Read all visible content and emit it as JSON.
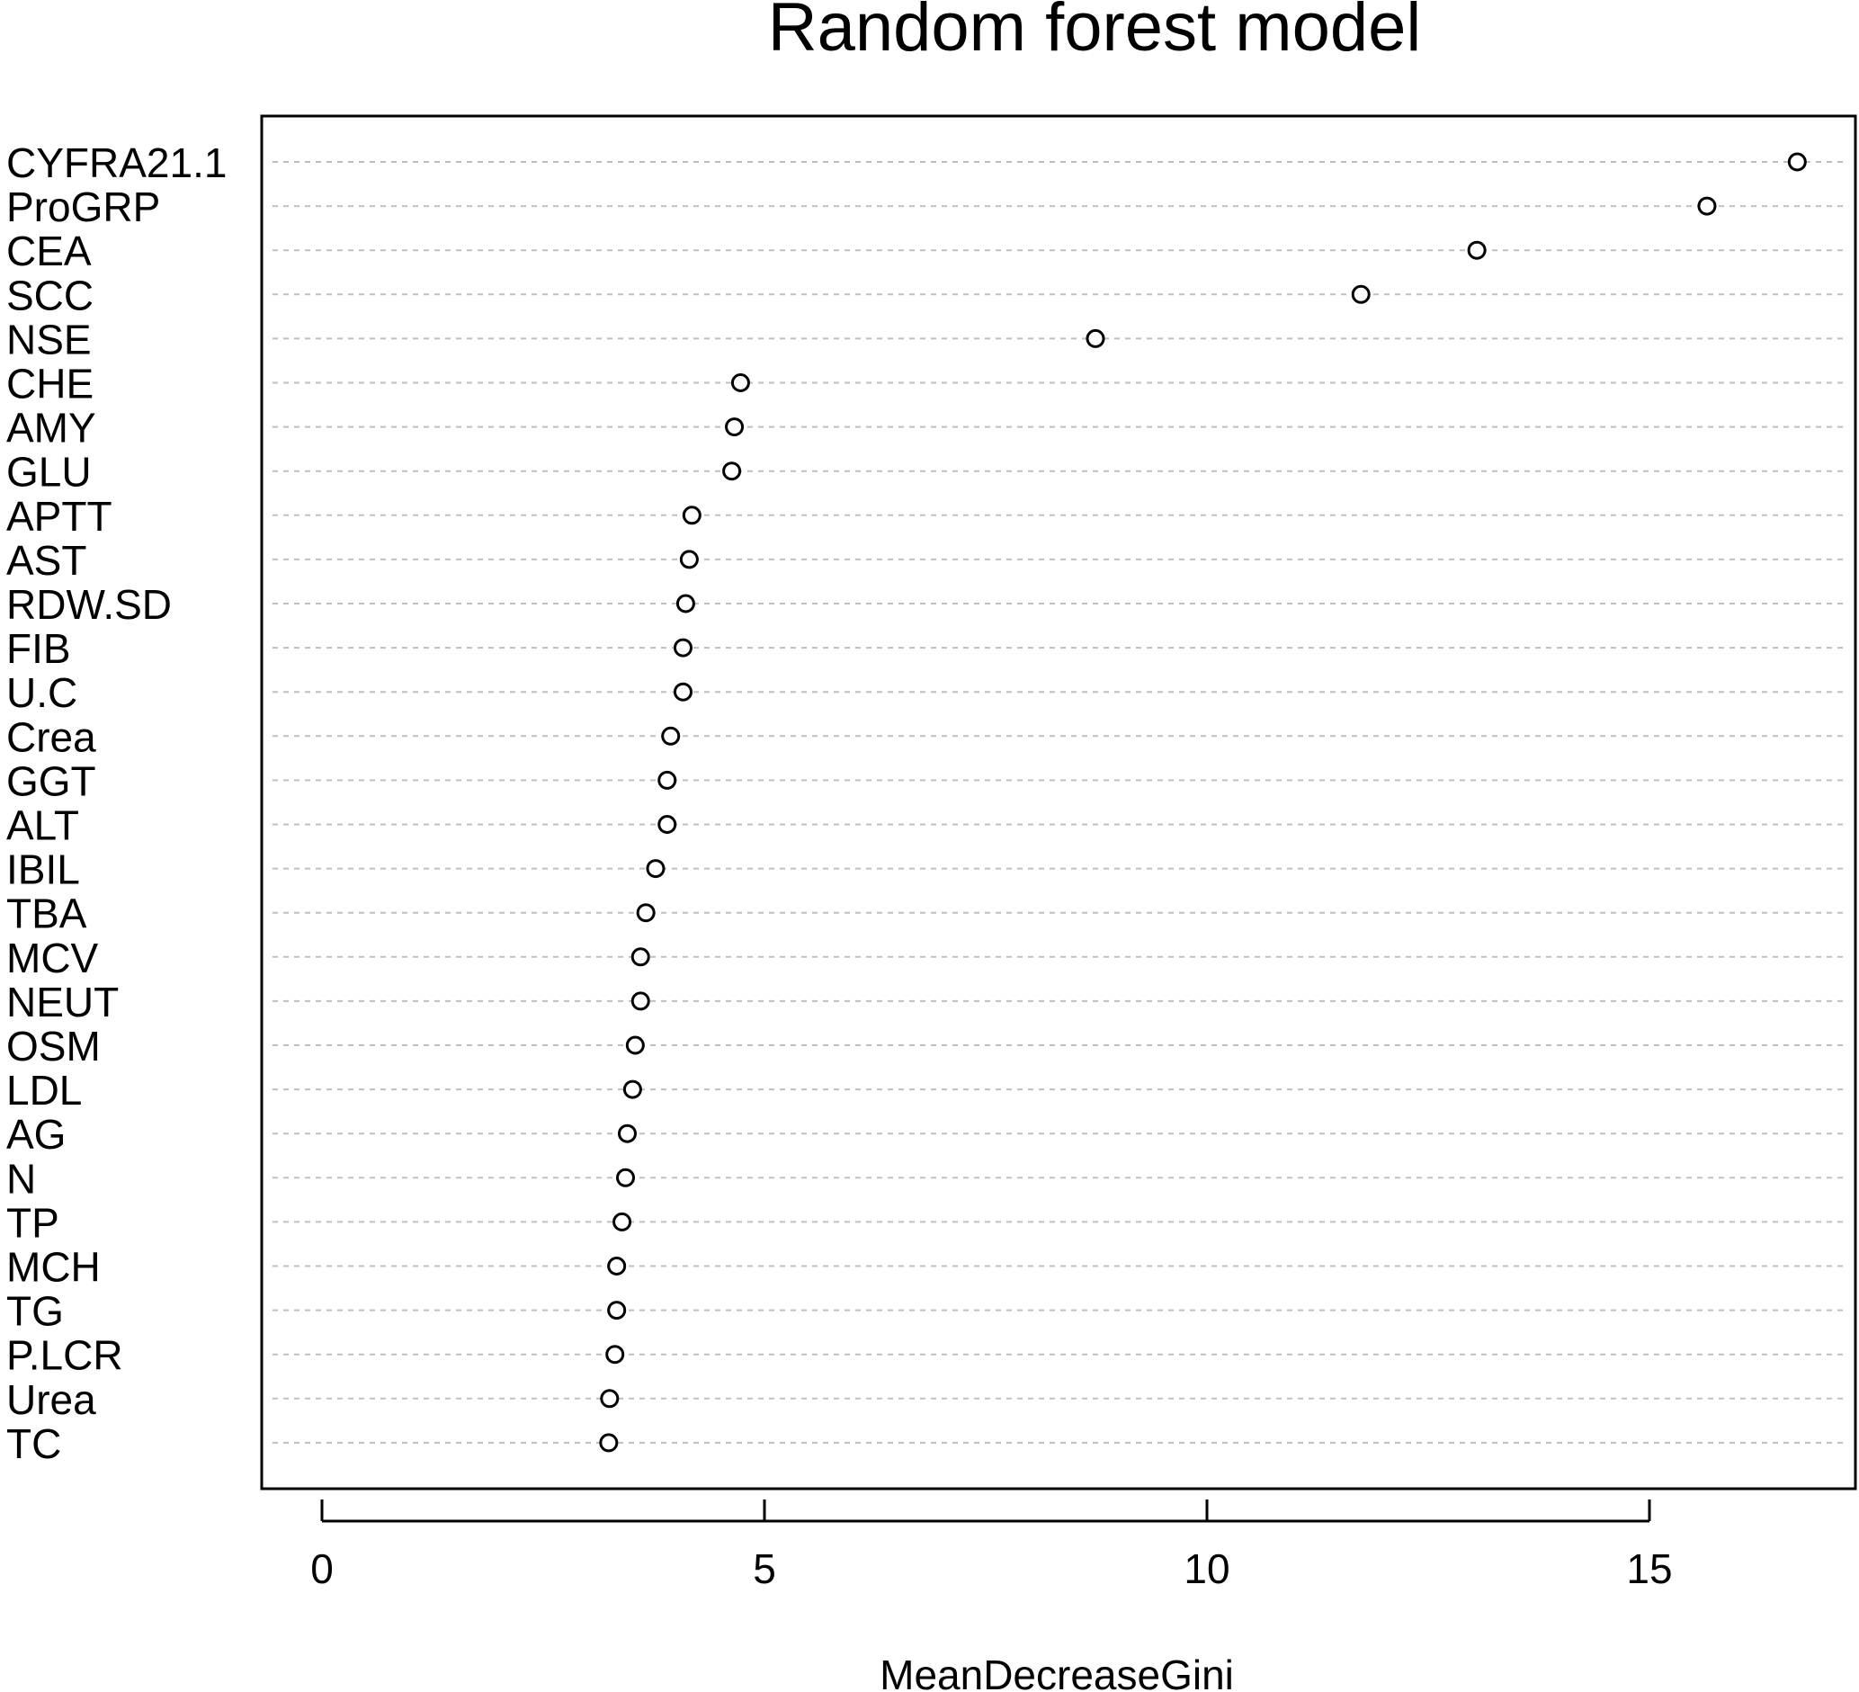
{
  "chart_data": {
    "type": "scatter",
    "title": "Random forest model",
    "xlabel": "MeanDecreaseGini",
    "ylabel": "",
    "xlim": [
      -0.7,
      17.3
    ],
    "xticks": [
      "0",
      "5",
      "10",
      "15"
    ],
    "grid": "dashed horizontal lines per category",
    "categories": [
      "CYFRA21.1",
      "ProGRP",
      "CEA",
      "SCC",
      "NSE",
      "CHE",
      "AMY",
      "GLU",
      "APTT",
      "AST",
      "RDW.SD",
      "FIB",
      "U.C",
      "Crea",
      "GGT",
      "ALT",
      "IBIL",
      "TBA",
      "MCV",
      "NEUT",
      "OSM",
      "LDL",
      "AG",
      "N",
      "TP",
      "MCH",
      "TG",
      "P.LCR",
      "Urea",
      "TC"
    ],
    "values": [
      16.67,
      15.65,
      13.05,
      11.74,
      8.74,
      4.73,
      4.66,
      4.63,
      4.18,
      4.15,
      4.11,
      4.08,
      4.08,
      3.94,
      3.9,
      3.9,
      3.77,
      3.66,
      3.6,
      3.6,
      3.54,
      3.51,
      3.45,
      3.43,
      3.39,
      3.33,
      3.33,
      3.31,
      3.25,
      3.24
    ],
    "marker": "open-circle",
    "colors": {
      "marker": "#000000",
      "grid": "#bfbfbf",
      "frame": "#000000"
    }
  }
}
